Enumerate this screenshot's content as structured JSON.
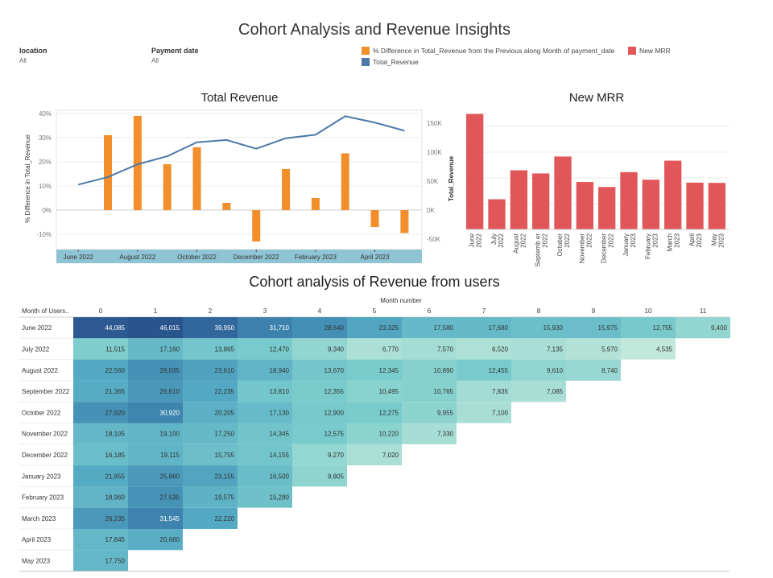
{
  "dashboard": {
    "title": "Cohort Analysis and Revenue Insights",
    "filters": [
      {
        "label": "location",
        "value": "All"
      },
      {
        "label": "Payment date",
        "value": "All"
      }
    ],
    "legend": [
      {
        "label": "% Difference in Total_Revenue from the Previous along Month of payment_date",
        "color": "#f28e2b"
      },
      {
        "label": "New MRR",
        "color": "#e15759"
      },
      {
        "label": "Total_Revenue",
        "color": "#4e79a7"
      }
    ]
  },
  "chart_data": [
    {
      "type": "bar",
      "title": "Total Revenue",
      "categories": [
        "Jun 2022",
        "Jul 2022",
        "Aug 2022",
        "Sep 2022",
        "Oct 2022",
        "Nov 2022",
        "Dec 2022",
        "Jan 2023",
        "Feb 2023",
        "Mar 2023",
        "Apr 2023",
        "May 2023"
      ],
      "xtick_labels": [
        "June 2022",
        "August 2022",
        "October 2022",
        "December 2022",
        "February 2023",
        "April 2023"
      ],
      "series": [
        {
          "name": "% Difference in Total_Revenue from the Previous along Month of payment_date",
          "kind": "bar",
          "axis": "left",
          "color": "#f28e2b",
          "values": [
            null,
            31,
            39,
            19,
            26,
            3,
            -13,
            17,
            5,
            23.5,
            -7,
            -9.5
          ]
        },
        {
          "name": "Total_Revenue",
          "kind": "line",
          "axis": "right",
          "color": "#4e79a7",
          "values": [
            44000,
            57000,
            79000,
            93000,
            117000,
            121000,
            106000,
            124000,
            130000,
            162000,
            151000,
            137000
          ]
        }
      ],
      "ylabel": "% Difference in Total_Revenue",
      "ylim": [
        -12,
        40
      ],
      "yticks": [
        "40%",
        "30%",
        "20%",
        "10%",
        "0%",
        "-10%"
      ],
      "y2label": "Total_Revenue",
      "y2lim": [
        -50000,
        165000
      ],
      "y2ticks": [
        "150K",
        "100K",
        "50K",
        "0K",
        "-50K"
      ]
    },
    {
      "type": "bar",
      "title": "New MRR",
      "categories": [
        "June 2022",
        "July 2022",
        "August 2022",
        "Septemb er 2022",
        "October 2022",
        "November 2022",
        "December 2022",
        "January 2023",
        "February 2023",
        "March 2023",
        "April 2023",
        "May 2023"
      ],
      "values": [
        44085,
        11515,
        22560,
        21365,
        27820,
        18105,
        16185,
        21855,
        18960,
        26235,
        17845,
        17750
      ],
      "color": "#e15759",
      "ylim": [
        0,
        47000
      ]
    },
    {
      "type": "heatmap",
      "title": "Cohort analysis of Revenue from users",
      "column_header": "Month number",
      "row_header": "Month of Users..",
      "columns": [
        "0",
        "1",
        "2",
        "3",
        "4",
        "5",
        "6",
        "7",
        "8",
        "9",
        "10",
        "11"
      ],
      "rows": [
        {
          "label": "June 2022",
          "values": [
            44085,
            46015,
            39950,
            31710,
            28640,
            23325,
            17580,
            17680,
            15930,
            15975,
            12755,
            9400
          ]
        },
        {
          "label": "July 2022",
          "values": [
            11515,
            17160,
            13865,
            12470,
            9340,
            6770,
            7570,
            6520,
            7135,
            5970,
            4535
          ]
        },
        {
          "label": "August 2022",
          "values": [
            22560,
            28035,
            23610,
            18940,
            13670,
            12345,
            10890,
            12455,
            9610,
            8740
          ]
        },
        {
          "label": "September 2022",
          "values": [
            21365,
            26610,
            22235,
            13810,
            12355,
            10495,
            10765,
            7835,
            7085
          ]
        },
        {
          "label": "October 2022",
          "values": [
            27820,
            30920,
            20205,
            17130,
            12900,
            12275,
            9955,
            7100
          ]
        },
        {
          "label": "November 2022",
          "values": [
            18105,
            19100,
            17250,
            14345,
            12575,
            10220,
            7330
          ]
        },
        {
          "label": "December 2022",
          "values": [
            16185,
            19115,
            15755,
            14155,
            9270,
            7020
          ]
        },
        {
          "label": "January 2023",
          "values": [
            21855,
            25860,
            23155,
            16500,
            9805
          ]
        },
        {
          "label": "February 2023",
          "values": [
            18960,
            27535,
            19575,
            15280
          ]
        },
        {
          "label": "March 2023",
          "values": [
            26235,
            31545,
            22220
          ]
        },
        {
          "label": "April 2023",
          "values": [
            17845,
            20680
          ]
        },
        {
          "label": "May 2023",
          "values": [
            17750
          ]
        }
      ]
    }
  ]
}
